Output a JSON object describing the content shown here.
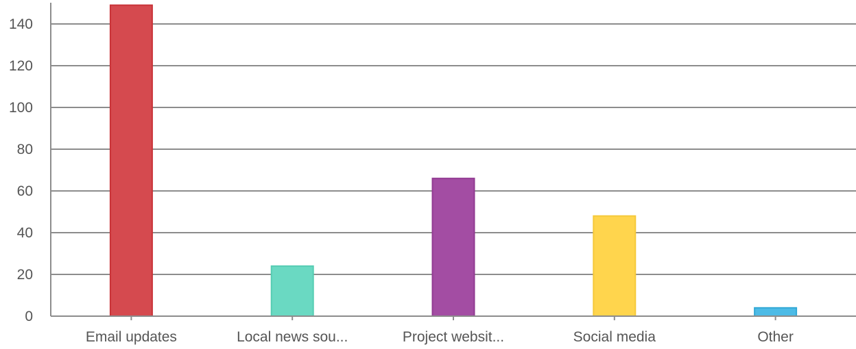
{
  "chart_data": {
    "type": "bar",
    "title": "",
    "xlabel": "",
    "ylabel": "",
    "categories": [
      "Email updates",
      "Local news sou...",
      "Project websit...",
      "Social media",
      "Other"
    ],
    "values": [
      149,
      24,
      66,
      48,
      4
    ],
    "colors": [
      "#D54A4F",
      "#6AD9C2",
      "#A34DA3",
      "#FFD54D",
      "#4DBBE6"
    ],
    "border_colors": [
      "#C93338",
      "#55CCB2",
      "#923A92",
      "#F5C93A",
      "#33A9D6"
    ],
    "ylim": [
      0,
      150
    ],
    "yticks": [
      0,
      20,
      40,
      60,
      80,
      100,
      120,
      140
    ],
    "grid": true
  }
}
